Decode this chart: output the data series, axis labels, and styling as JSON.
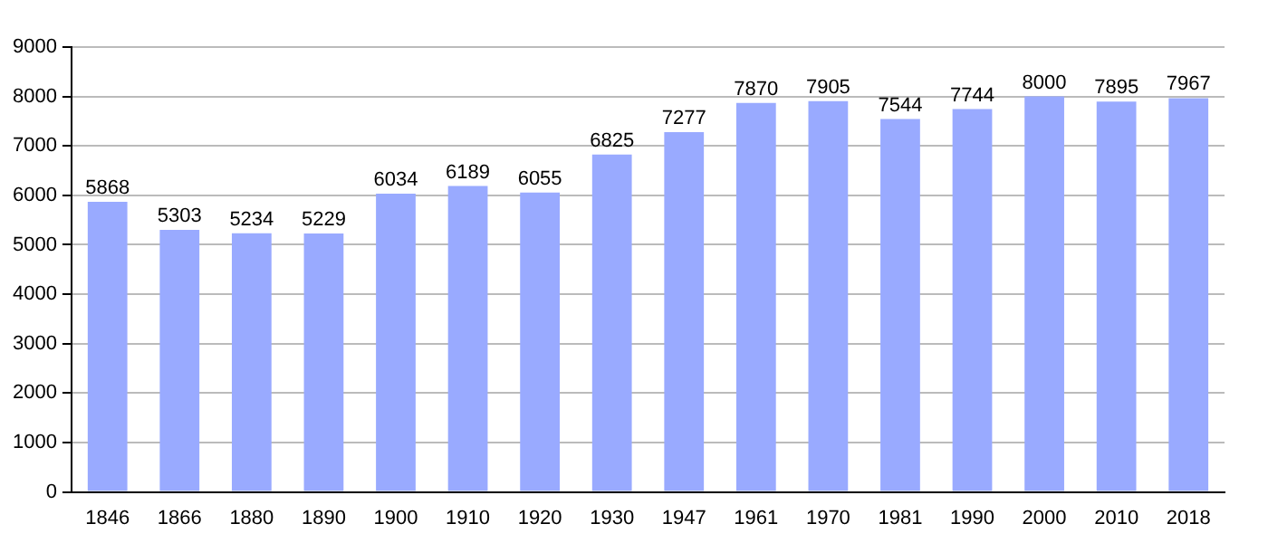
{
  "chart_data": {
    "type": "bar",
    "categories": [
      "1846",
      "1866",
      "1880",
      "1890",
      "1900",
      "1910",
      "1920",
      "1930",
      "1947",
      "1961",
      "1970",
      "1981",
      "1990",
      "2000",
      "2010",
      "2018"
    ],
    "values": [
      5868,
      5303,
      5234,
      5229,
      6034,
      6189,
      6055,
      6825,
      7277,
      7870,
      7905,
      7544,
      7744,
      8000,
      7895,
      7967
    ],
    "color": "#99aaff",
    "ylim": [
      0,
      9000
    ],
    "yticks": [
      0,
      1000,
      2000,
      3000,
      4000,
      5000,
      6000,
      7000,
      8000,
      9000
    ],
    "grid": "y",
    "data_labels": true
  }
}
